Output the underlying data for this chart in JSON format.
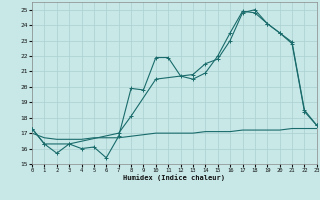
{
  "xlabel": "Humidex (Indice chaleur)",
  "xlim": [
    0,
    23
  ],
  "ylim": [
    15,
    25.5
  ],
  "yticks": [
    15,
    16,
    17,
    18,
    19,
    20,
    21,
    22,
    23,
    24,
    25
  ],
  "xticks": [
    0,
    1,
    2,
    3,
    4,
    5,
    6,
    7,
    8,
    9,
    10,
    11,
    12,
    13,
    14,
    15,
    16,
    17,
    18,
    19,
    20,
    21,
    22,
    23
  ],
  "bg_color": "#c8e8e8",
  "grid_color": "#aad0d0",
  "line_color": "#1a6b6b",
  "line1_x": [
    0,
    1,
    2,
    3,
    4,
    5,
    6,
    7,
    8,
    9,
    10,
    11,
    12,
    13,
    14,
    15,
    16,
    17,
    18,
    19,
    20,
    21,
    22,
    23
  ],
  "line1_y": [
    17.3,
    16.3,
    15.7,
    16.3,
    16.0,
    16.1,
    15.4,
    16.8,
    19.9,
    19.8,
    21.9,
    21.9,
    20.7,
    20.5,
    20.9,
    22.0,
    23.5,
    24.9,
    24.8,
    24.1,
    23.5,
    22.8,
    18.4,
    17.5
  ],
  "line2_x": [
    0,
    1,
    3,
    7,
    8,
    10,
    13,
    14,
    15,
    16,
    17,
    18,
    19,
    20,
    21,
    22,
    23
  ],
  "line2_y": [
    17.3,
    16.3,
    16.3,
    17.0,
    18.1,
    20.5,
    20.8,
    21.5,
    21.8,
    23.0,
    24.8,
    25.0,
    24.1,
    23.5,
    22.9,
    18.5,
    17.5
  ],
  "line3_x": [
    0,
    1,
    2,
    3,
    4,
    5,
    6,
    7,
    8,
    9,
    10,
    11,
    12,
    13,
    14,
    15,
    16,
    17,
    18,
    19,
    20,
    21,
    22,
    23
  ],
  "line3_y": [
    17.0,
    16.7,
    16.6,
    16.6,
    16.6,
    16.7,
    16.7,
    16.7,
    16.8,
    16.9,
    17.0,
    17.0,
    17.0,
    17.0,
    17.1,
    17.1,
    17.1,
    17.2,
    17.2,
    17.2,
    17.2,
    17.3,
    17.3,
    17.3
  ]
}
